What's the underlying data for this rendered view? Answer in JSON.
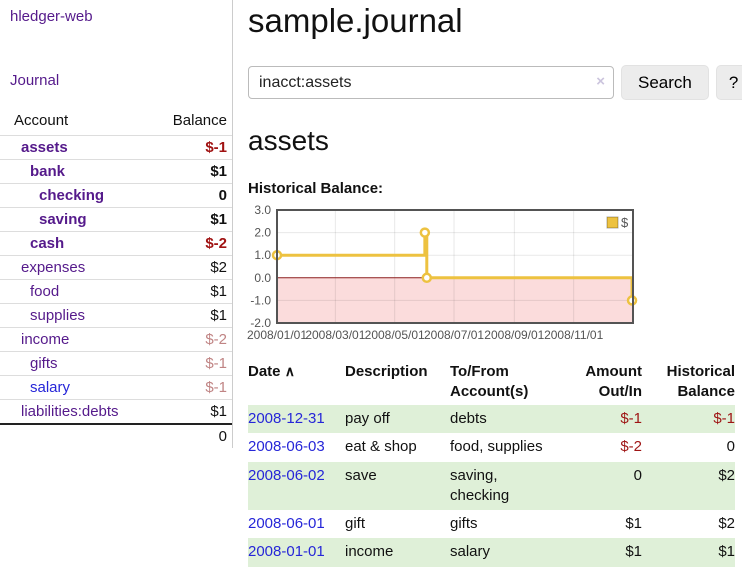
{
  "app": {
    "title": "hledger-web"
  },
  "sidebar": {
    "journal_link": "Journal",
    "table": {
      "account_header": "Account",
      "balance_header": "Balance",
      "rows": [
        {
          "account": "assets",
          "balance": "$-1",
          "level": 1,
          "bold": true,
          "balance_style": "neg-strong",
          "link_style": "purple"
        },
        {
          "account": "bank",
          "balance": "$1",
          "level": 2,
          "bold": true,
          "balance_style": "plain",
          "link_style": "purple"
        },
        {
          "account": "checking",
          "balance": "0",
          "level": 3,
          "bold": true,
          "balance_style": "plain",
          "link_style": "purple"
        },
        {
          "account": "saving",
          "balance": "$1",
          "level": 3,
          "bold": true,
          "balance_style": "plain",
          "link_style": "purple"
        },
        {
          "account": "cash",
          "balance": "$-2",
          "level": 2,
          "bold": true,
          "balance_style": "neg-strong",
          "link_style": "purple"
        },
        {
          "account": "expenses",
          "balance": "$2",
          "level": 1,
          "bold": false,
          "balance_style": "plain",
          "link_style": "purple"
        },
        {
          "account": "food",
          "balance": "$1",
          "level": 2,
          "bold": false,
          "balance_style": "plain",
          "link_style": "purple"
        },
        {
          "account": "supplies",
          "balance": "$1",
          "level": 2,
          "bold": false,
          "balance_style": "plain",
          "link_style": "purple"
        },
        {
          "account": "income",
          "balance": "$-2",
          "level": 1,
          "bold": false,
          "balance_style": "neg-soft",
          "link_style": "purple"
        },
        {
          "account": "gifts",
          "balance": "$-1",
          "level": 2,
          "bold": false,
          "balance_style": "neg-soft",
          "link_style": "purple"
        },
        {
          "account": "salary",
          "balance": "$-1",
          "level": 2,
          "bold": false,
          "balance_style": "neg-soft",
          "link_style": "blue"
        },
        {
          "account": "liabilities:debts",
          "balance": "$1",
          "level": 1,
          "bold": false,
          "balance_style": "plain",
          "link_style": "purple"
        }
      ],
      "total": "0"
    }
  },
  "main": {
    "title": "sample.journal",
    "search": {
      "value": "inacct:assets",
      "clear_icon": "×",
      "button_label": "Search",
      "help_label": "?"
    },
    "account_heading": "assets",
    "chart_label": "Historical Balance:"
  },
  "chart_data": {
    "type": "line",
    "step": true,
    "title": "Historical Balance",
    "series": [
      {
        "name": "$",
        "color": "#edc240",
        "points": [
          [
            "2008-01-01",
            1
          ],
          [
            "2008-06-01",
            2
          ],
          [
            "2008-06-03",
            0
          ],
          [
            "2008-12-31",
            -1
          ]
        ]
      }
    ],
    "xlim": [
      "2008-01-01",
      "2009-01-01"
    ],
    "ylim": [
      -2,
      3
    ],
    "yticks": [
      {
        "v": 3,
        "label": "3.0"
      },
      {
        "v": 2,
        "label": "2.0"
      },
      {
        "v": 1,
        "label": "1.0"
      },
      {
        "v": 0,
        "label": "0.0"
      },
      {
        "v": -1,
        "label": "-1.0"
      },
      {
        "v": -2,
        "label": "-2.0"
      }
    ],
    "xticks": [
      {
        "d": "2008-01-01",
        "label": "2008/01/01"
      },
      {
        "d": "2008-03-01",
        "label": "2008/03/01"
      },
      {
        "d": "2008-05-01",
        "label": "2008/05/01"
      },
      {
        "d": "2008-07-01",
        "label": "2008/07/01"
      },
      {
        "d": "2008-09-01",
        "label": "2008/09/01"
      },
      {
        "d": "2008-11-01",
        "label": "2008/11/01"
      }
    ],
    "legend": {
      "label": "$",
      "position": "top-right"
    },
    "grid": true,
    "negative_region_color": "#fbdcdc",
    "zero_line_color": "#8b1d1d"
  },
  "transactions": {
    "headers": {
      "date": "Date",
      "sort_indicator": "∧",
      "description": "Description",
      "accounts": "To/From Account(s)",
      "amount": "Amount Out/In",
      "balance": "Historical Balance"
    },
    "rows": [
      {
        "date": "2008-12-31",
        "description": "pay off",
        "accounts": "debts",
        "amount": "$-1",
        "balance": "$-1",
        "amount_negative": true,
        "balance_negative": true,
        "shaded": true
      },
      {
        "date": "2008-06-03",
        "description": "eat & shop",
        "accounts": "food, supplies",
        "amount": "$-2",
        "balance": "0",
        "amount_negative": true,
        "balance_negative": false,
        "shaded": false
      },
      {
        "date": "2008-06-02",
        "description": "save",
        "accounts": "saving, checking",
        "amount": "0",
        "balance": "$2",
        "amount_negative": false,
        "balance_negative": false,
        "shaded": true
      },
      {
        "date": "2008-06-01",
        "description": "gift",
        "accounts": "gifts",
        "amount": "$1",
        "balance": "$2",
        "amount_negative": false,
        "balance_negative": false,
        "shaded": false
      },
      {
        "date": "2008-01-01",
        "description": "income",
        "accounts": "salary",
        "amount": "$1",
        "balance": "$1",
        "amount_negative": false,
        "balance_negative": false,
        "shaded": true
      }
    ]
  },
  "colors": {
    "link_purple": "#551a8b",
    "link_blue": "#2626d8",
    "negative_strong": "#a01212",
    "negative_soft": "#c08484",
    "row_shade_green": "#dff0d8",
    "chart_series_yellow": "#edc240",
    "chart_negative_fill": "#fbdcdc",
    "chart_zero_line": "#8b1d1d"
  }
}
